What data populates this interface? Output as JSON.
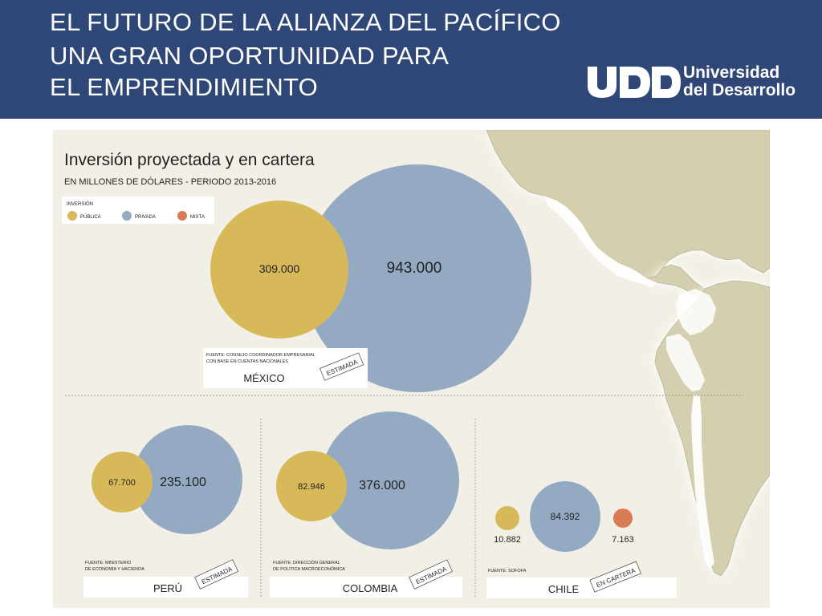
{
  "slide": {
    "title_lines": [
      "EL FUTURO DE LA ALIANZA DEL PACÍFICO",
      "UNA GRAN OPORTUNIDAD PARA",
      "EL EMPRENDIMIENTO"
    ],
    "logo": {
      "line1": "Universidad",
      "line2": "del Desarrollo"
    }
  },
  "colors": {
    "header_bg": "#2e4777",
    "publica": "#d8b95a",
    "privada": "#94aac2",
    "mixta": "#d97c56",
    "land": "#d4cfae",
    "panel_bg": "#f2efe6"
  },
  "chart_data": {
    "type": "bubble",
    "title": "Inversión proyectada y en cartera",
    "subtitle": "EN MILLONES DE DÓLARES - PERIODO 2013-2016",
    "legend": {
      "title": "INVERSIÓN",
      "placement": "top-left",
      "items": [
        {
          "label": "PÚBLICA",
          "color": "#d8b95a"
        },
        {
          "label": "PRIVADA",
          "color": "#94aac2"
        },
        {
          "label": "MIXTA",
          "color": "#d97c56"
        }
      ]
    },
    "countries": [
      {
        "name": "MÉXICO",
        "stamp": "ESTIMADA",
        "source": [
          "FUENTE: CONSEJO COORDINADOR EMPRESARIAL",
          "CON BASE EN CUENTAS NACIONALES"
        ],
        "values": [
          {
            "type": "PRIVADA",
            "label": "943.000",
            "value": 943000
          },
          {
            "type": "PÚBLICA",
            "label": "309.000",
            "value": 309000
          }
        ]
      },
      {
        "name": "PERÚ",
        "stamp": "ESTIMADA",
        "source": [
          "FUENTE: MINISTERIO",
          "DE ECONOMÍA Y HACIENDA"
        ],
        "values": [
          {
            "type": "PRIVADA",
            "label": "235.100",
            "value": 235100
          },
          {
            "type": "PÚBLICA",
            "label": "67.700",
            "value": 67700
          }
        ]
      },
      {
        "name": "COLOMBIA",
        "stamp": "ESTIMADA",
        "source": [
          "FUENTE: DIRECCIÓN GENERAL",
          "DE POLÍTICA MACROECONÓMICA"
        ],
        "values": [
          {
            "type": "PRIVADA",
            "label": "376.000",
            "value": 376000
          },
          {
            "type": "PÚBLICA",
            "label": "82.946",
            "value": 82946
          }
        ]
      },
      {
        "name": "CHILE",
        "stamp": "EN CARTERA",
        "source": [
          "FUENTE: SOFOFA"
        ],
        "values": [
          {
            "type": "PÚBLICA",
            "label": "10.882",
            "value": 10882
          },
          {
            "type": "PRIVADA",
            "label": "84.392",
            "value": 84392
          },
          {
            "type": "MIXTA",
            "label": "7.163",
            "value": 7163
          }
        ]
      }
    ]
  }
}
